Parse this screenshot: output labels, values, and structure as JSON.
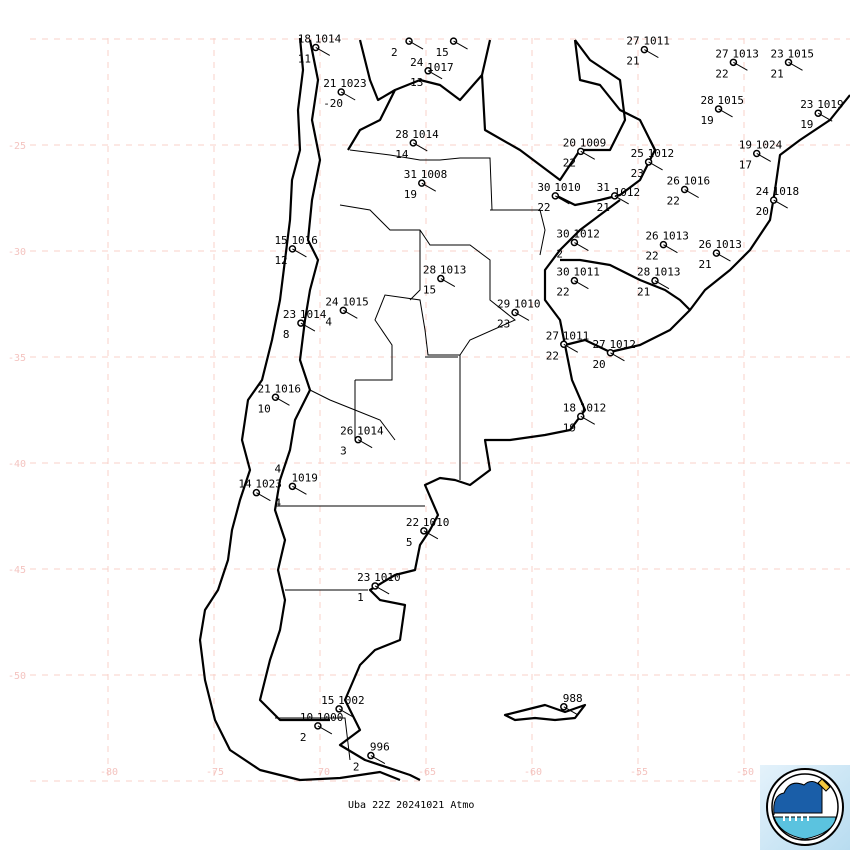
{
  "map": {
    "lon_ticks": [
      "-80",
      "-75",
      "-70",
      "-65",
      "-60",
      "-55",
      "-50"
    ],
    "lat_ticks": [
      "-25",
      "-30",
      "-35",
      "-40",
      "-45",
      "-50"
    ],
    "colors": {
      "grid": "#f8d0c8",
      "axis_labels": "#f4c4c0",
      "lines": "#000000"
    },
    "stations": [
      {
        "lon": -70.2,
        "lat": -20.4,
        "t": "18",
        "p": "1014",
        "d": "11"
      },
      {
        "lon": -69.0,
        "lat": -22.5,
        "t": "21",
        "p": "1023",
        "d": "-20"
      },
      {
        "lon": -63.7,
        "lat": -20.1,
        "t": "",
        "p": "",
        "d": "15"
      },
      {
        "lon": -65.8,
        "lat": -20.1,
        "t": "",
        "p": "",
        "d": "2"
      },
      {
        "lon": -64.9,
        "lat": -21.5,
        "t": "24",
        "p": "1017",
        "d": "13"
      },
      {
        "lon": -65.6,
        "lat": -24.9,
        "t": "28",
        "p": "1014",
        "d": "14"
      },
      {
        "lon": -65.2,
        "lat": -26.8,
        "t": "31",
        "p": "1008",
        "d": "19"
      },
      {
        "lon": -54.7,
        "lat": -20.5,
        "t": "27",
        "p": "1011",
        "d": "21"
      },
      {
        "lon": -50.5,
        "lat": -21.1,
        "t": "27",
        "p": "1013",
        "d": "22"
      },
      {
        "lon": -47.9,
        "lat": -21.1,
        "t": "23",
        "p": "1015",
        "d": "21"
      },
      {
        "lon": -51.2,
        "lat": -23.3,
        "t": "28",
        "p": "1015",
        "d": "19"
      },
      {
        "lon": -46.5,
        "lat": -23.5,
        "t": "23",
        "p": "1019",
        "d": "19"
      },
      {
        "lon": -57.7,
        "lat": -25.3,
        "t": "20",
        "p": "1009",
        "d": "22"
      },
      {
        "lon": -54.5,
        "lat": -25.8,
        "t": "25",
        "p": "1012",
        "d": "23"
      },
      {
        "lon": -49.4,
        "lat": -25.4,
        "t": "19",
        "p": "1024",
        "d": "17"
      },
      {
        "lon": -58.9,
        "lat": -27.4,
        "t": "30",
        "p": "1010",
        "d": "22"
      },
      {
        "lon": -56.1,
        "lat": -27.4,
        "t": "31",
        "p": "1012",
        "d": "21"
      },
      {
        "lon": -52.8,
        "lat": -27.1,
        "t": "26",
        "p": "1016",
        "d": "22"
      },
      {
        "lon": -48.6,
        "lat": -27.6,
        "t": "24",
        "p": "1018",
        "d": "20"
      },
      {
        "lon": -71.3,
        "lat": -29.9,
        "t": "15",
        "p": "1016",
        "d": "12"
      },
      {
        "lon": -58.0,
        "lat": -29.6,
        "t": "30",
        "p": "1012",
        "d": "2"
      },
      {
        "lon": -53.8,
        "lat": -29.7,
        "t": "26",
        "p": "1013",
        "d": "22"
      },
      {
        "lon": -51.3,
        "lat": -30.1,
        "t": "26",
        "p": "1013",
        "d": "21"
      },
      {
        "lon": -58.0,
        "lat": -31.4,
        "t": "30",
        "p": "1011",
        "d": "22"
      },
      {
        "lon": -54.2,
        "lat": -31.4,
        "t": "28",
        "p": "1013",
        "d": "21"
      },
      {
        "lon": -64.3,
        "lat": -31.3,
        "t": "28",
        "p": "1013",
        "d": "15"
      },
      {
        "lon": -68.9,
        "lat": -32.8,
        "t": "24",
        "p": "1015",
        "d": "4"
      },
      {
        "lon": -70.9,
        "lat": -33.4,
        "t": "23",
        "p": "1014",
        "d": "8"
      },
      {
        "lon": -60.8,
        "lat": -32.9,
        "t": "29",
        "p": "1010",
        "d": "23"
      },
      {
        "lon": -58.5,
        "lat": -34.4,
        "t": "27",
        "p": "1011",
        "d": "22"
      },
      {
        "lon": -56.3,
        "lat": -34.8,
        "t": "27",
        "p": "1012",
        "d": "20"
      },
      {
        "lon": -72.1,
        "lat": -36.9,
        "t": "21",
        "p": "1016",
        "d": "10"
      },
      {
        "lon": -57.7,
        "lat": -37.8,
        "t": "18",
        "p": "1012",
        "d": "19"
      },
      {
        "lon": -68.2,
        "lat": -38.9,
        "t": "26",
        "p": "1014",
        "d": "3"
      },
      {
        "lon": -73.0,
        "lat": -41.4,
        "t": "14",
        "p": "1023",
        "d": ""
      },
      {
        "lon": -71.3,
        "lat": -41.1,
        "t": "4",
        "p": "1019",
        "d": "4"
      },
      {
        "lon": -65.1,
        "lat": -43.2,
        "t": "22",
        "p": "1010",
        "d": "5"
      },
      {
        "lon": -67.4,
        "lat": -45.8,
        "t": "23",
        "p": "1010",
        "d": "1"
      },
      {
        "lon": -69.1,
        "lat": -51.6,
        "t": "15",
        "p": "1002",
        "d": ""
      },
      {
        "lon": -70.1,
        "lat": -52.4,
        "t": "10",
        "p": "1000",
        "d": "2"
      },
      {
        "lon": -67.6,
        "lat": -53.8,
        "t": "",
        "p": "996",
        "d": "2"
      },
      {
        "lon": -58.5,
        "lat": -51.5,
        "t": "",
        "p": "988",
        "d": ""
      }
    ]
  },
  "caption": "Uba  22Z 20241021 Atmo",
  "logo": {
    "name": "weather-service-logo",
    "text": ""
  }
}
